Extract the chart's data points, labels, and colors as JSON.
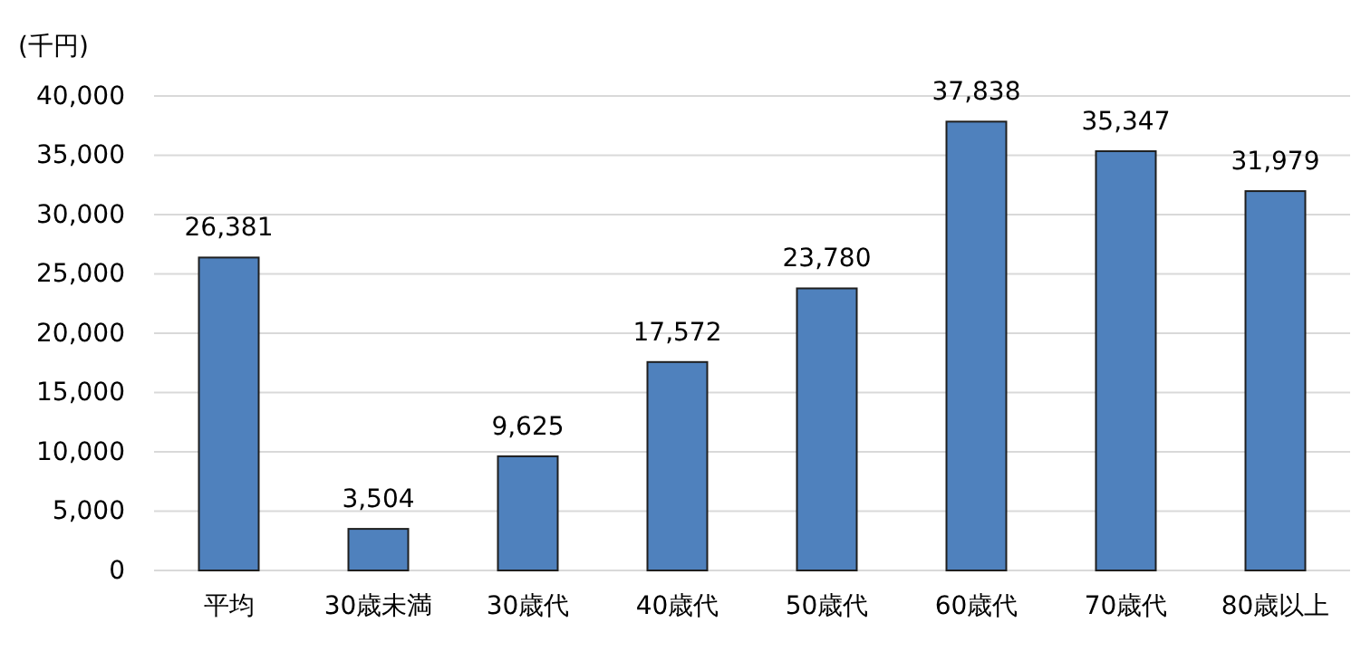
{
  "chart_data": {
    "type": "bar",
    "ylabel": "(千円)",
    "categories": [
      "平均",
      "30歳未満",
      "30歳代",
      "40歳代",
      "50歳代",
      "60歳代",
      "70歳代",
      "80歳以上"
    ],
    "values": [
      26381,
      3504,
      9625,
      17572,
      23780,
      37838,
      35347,
      31979
    ],
    "color": "#4f81bd",
    "ylim": [
      0,
      40000
    ],
    "yticks": [
      0,
      {
        "value": 5000,
        "label": "5,000"
      },
      {
        "value": 10000,
        "label": "10,000"
      },
      {
        "value": 15000,
        "label": "15,000"
      },
      {
        "value": 20000,
        "label": "20,000"
      },
      {
        "value": 25000,
        "label": "25,000"
      },
      {
        "value": 30000,
        "label": "30,000"
      },
      {
        "value": 35000,
        "label": "35,000"
      },
      {
        "value": 40000,
        "label": "40,000"
      }
    ],
    "value_labels": [
      "26,381",
      "3,504",
      "9,625",
      "17,572",
      "23,780",
      "37,838",
      "35,347",
      "31,979"
    ],
    "grid": "y"
  }
}
